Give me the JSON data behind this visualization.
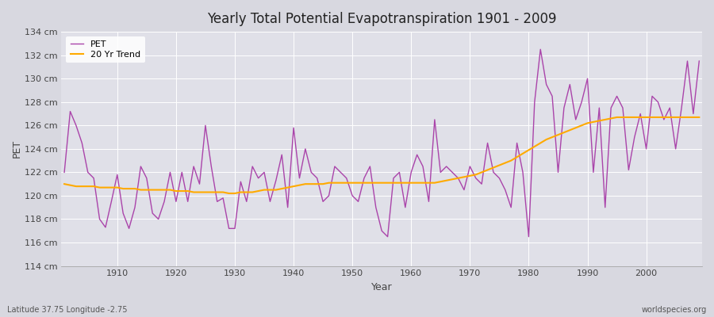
{
  "title": "Yearly Total Potential Evapotranspiration 1901 - 2009",
  "xlabel": "Year",
  "ylabel": "PET",
  "subtitle_left": "Latitude 37.75 Longitude -2.75",
  "subtitle_right": "worldspecies.org",
  "ylim": [
    114,
    134
  ],
  "ytick_step": 2,
  "pet_color": "#aa44aa",
  "trend_color": "#ffaa00",
  "bg_color": "#e8e8ec",
  "plot_bg_color": "#e0e0e8",
  "grid_color": "#ffffff",
  "years": [
    1901,
    1902,
    1903,
    1904,
    1905,
    1906,
    1907,
    1908,
    1909,
    1910,
    1911,
    1912,
    1913,
    1914,
    1915,
    1916,
    1917,
    1918,
    1919,
    1920,
    1921,
    1922,
    1923,
    1924,
    1925,
    1926,
    1927,
    1928,
    1929,
    1930,
    1931,
    1932,
    1933,
    1934,
    1935,
    1936,
    1937,
    1938,
    1939,
    1940,
    1941,
    1942,
    1943,
    1944,
    1945,
    1946,
    1947,
    1948,
    1949,
    1950,
    1951,
    1952,
    1953,
    1954,
    1955,
    1956,
    1957,
    1958,
    1959,
    1960,
    1961,
    1962,
    1963,
    1964,
    1965,
    1966,
    1967,
    1968,
    1969,
    1970,
    1971,
    1972,
    1973,
    1974,
    1975,
    1976,
    1977,
    1978,
    1979,
    1980,
    1981,
    1982,
    1983,
    1984,
    1985,
    1986,
    1987,
    1988,
    1989,
    1990,
    1991,
    1992,
    1993,
    1994,
    1995,
    1996,
    1997,
    1998,
    1999,
    2000,
    2001,
    2002,
    2003,
    2004,
    2005,
    2006,
    2007,
    2008,
    2009
  ],
  "pet_values": [
    122.0,
    127.2,
    126.0,
    124.5,
    122.0,
    121.5,
    118.0,
    117.3,
    119.5,
    121.8,
    118.5,
    117.2,
    119.0,
    122.5,
    121.5,
    118.5,
    118.0,
    119.5,
    122.0,
    119.5,
    122.0,
    119.5,
    122.5,
    121.0,
    126.0,
    122.5,
    119.5,
    119.8,
    117.2,
    117.2,
    121.2,
    119.5,
    122.5,
    121.5,
    122.0,
    119.5,
    121.3,
    123.5,
    119.0,
    125.8,
    121.5,
    124.0,
    122.0,
    121.5,
    119.5,
    120.0,
    122.5,
    122.0,
    121.5,
    120.0,
    119.5,
    121.5,
    122.5,
    119.0,
    117.0,
    116.5,
    121.5,
    122.0,
    119.0,
    122.0,
    123.5,
    122.5,
    119.5,
    126.5,
    122.0,
    122.5,
    122.0,
    121.5,
    120.5,
    122.5,
    121.5,
    121.0,
    124.5,
    122.0,
    121.5,
    120.5,
    119.0,
    124.5,
    122.0,
    116.5,
    128.0,
    132.5,
    129.5,
    128.5,
    122.0,
    127.5,
    129.5,
    126.5,
    128.0,
    130.0,
    122.0,
    127.5,
    119.0,
    127.5,
    128.5,
    127.5,
    122.2,
    125.0,
    127.0,
    124.0,
    128.5,
    128.0,
    126.5,
    127.5,
    124.0,
    127.5,
    131.5,
    127.0,
    131.5
  ],
  "trend_values": [
    121.0,
    120.9,
    120.8,
    120.8,
    120.8,
    120.8,
    120.7,
    120.7,
    120.7,
    120.7,
    120.6,
    120.6,
    120.6,
    120.5,
    120.5,
    120.5,
    120.5,
    120.5,
    120.5,
    120.4,
    120.4,
    120.4,
    120.3,
    120.3,
    120.3,
    120.3,
    120.3,
    120.3,
    120.2,
    120.2,
    120.3,
    120.3,
    120.3,
    120.4,
    120.5,
    120.5,
    120.5,
    120.6,
    120.7,
    120.8,
    120.9,
    121.0,
    121.0,
    121.0,
    121.0,
    121.1,
    121.1,
    121.1,
    121.1,
    121.1,
    121.1,
    121.1,
    121.1,
    121.1,
    121.1,
    121.1,
    121.1,
    121.1,
    121.1,
    121.1,
    121.1,
    121.1,
    121.1,
    121.1,
    121.2,
    121.3,
    121.4,
    121.5,
    121.6,
    121.7,
    121.8,
    122.0,
    122.2,
    122.4,
    122.6,
    122.8,
    123.0,
    123.3,
    123.6,
    123.9,
    124.2,
    124.5,
    124.8,
    125.0,
    125.2,
    125.4,
    125.6,
    125.8,
    126.0,
    126.2,
    126.3,
    126.4,
    126.5,
    126.6,
    126.7,
    126.7,
    126.7,
    126.7,
    126.7,
    126.7,
    126.7,
    126.7,
    126.7,
    126.7,
    126.7,
    126.7,
    126.7,
    126.7,
    126.7
  ]
}
